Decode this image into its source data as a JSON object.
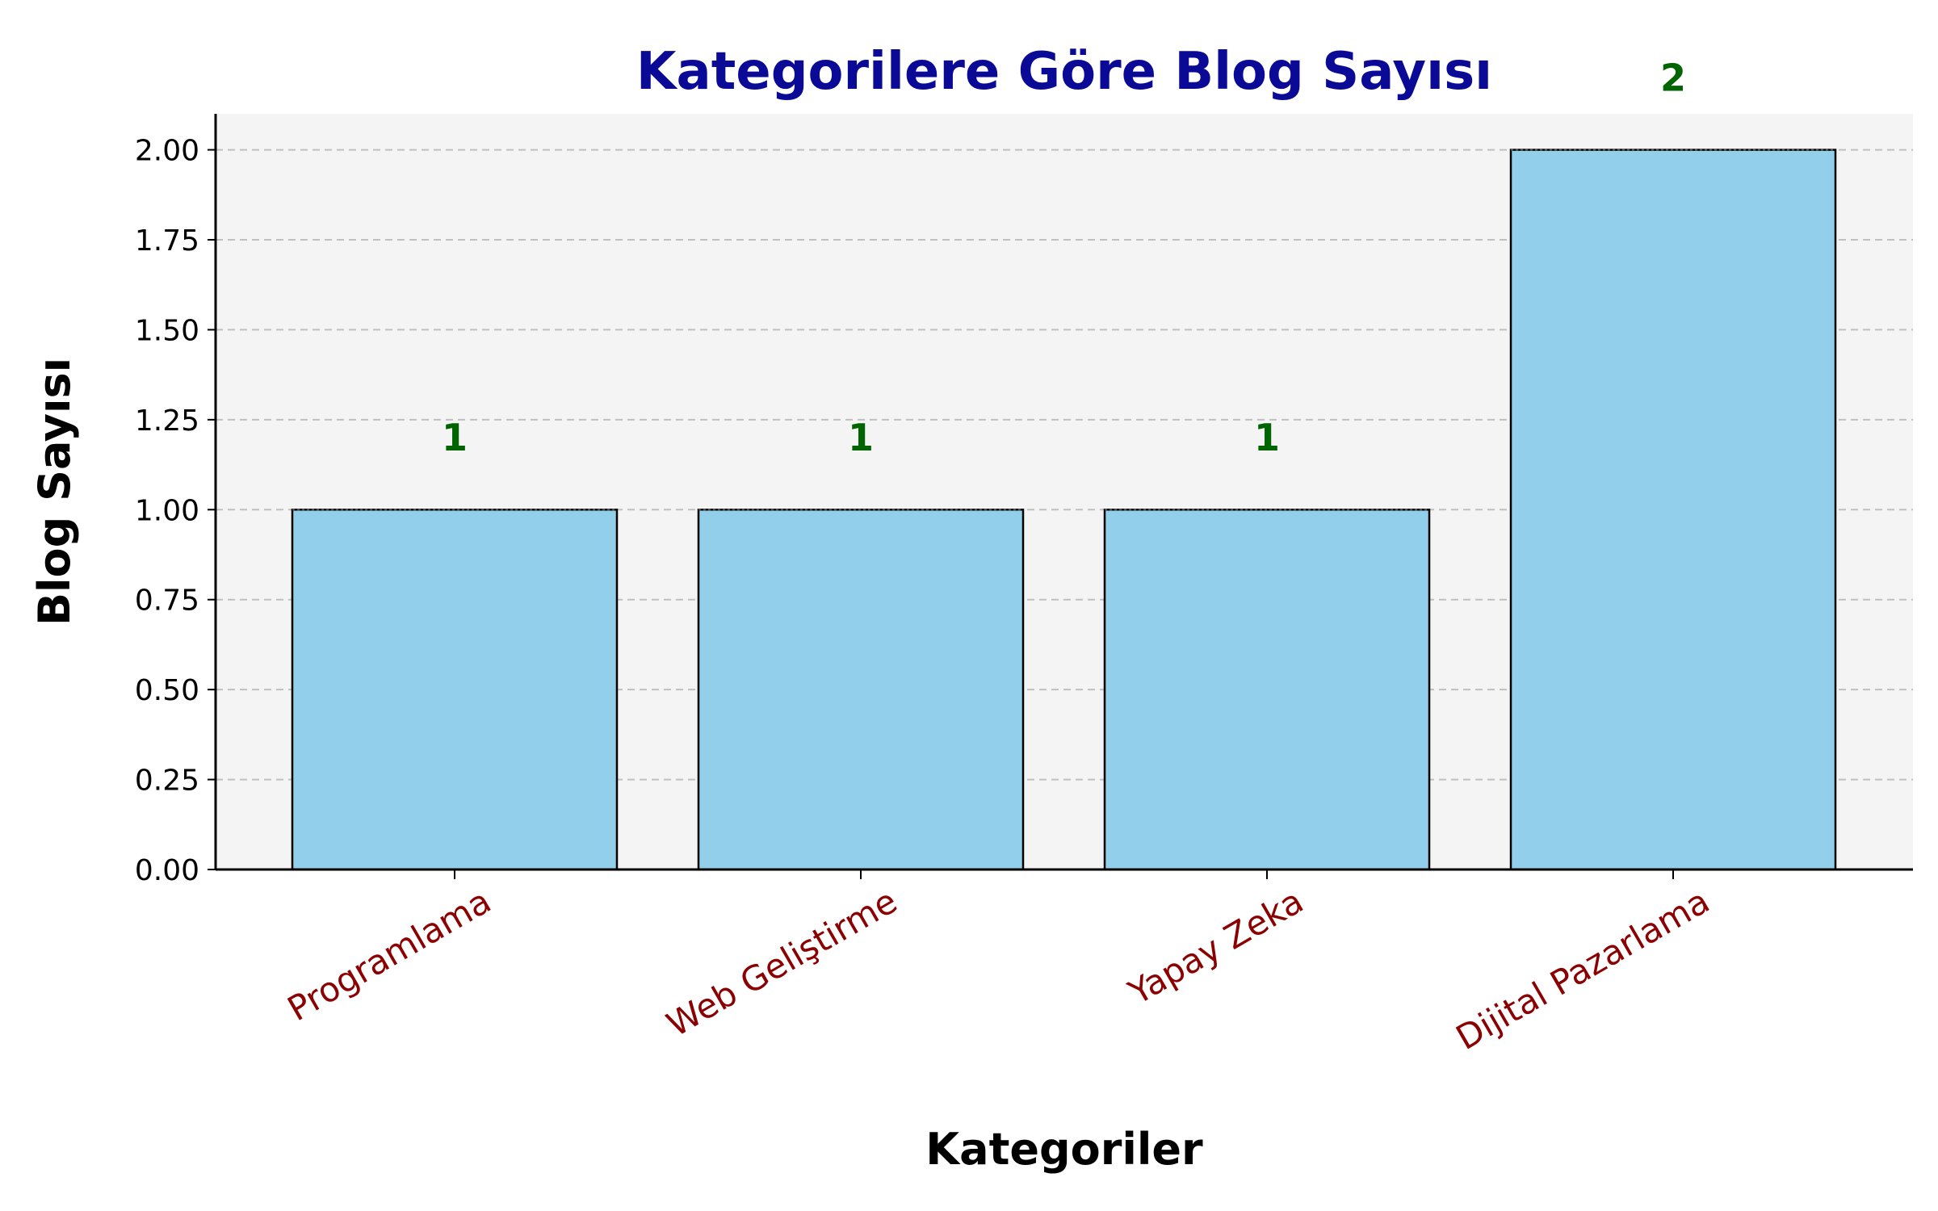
{
  "chart_data": {
    "type": "bar",
    "title": "Kategorilere Göre Blog Sayısı",
    "xlabel": "Kategoriler",
    "ylabel": "Blog Sayısı",
    "categories": [
      "Programlama",
      "Web Geliştirme",
      "Yapay Zeka",
      "Dijital Pazarlama"
    ],
    "values": [
      1,
      1,
      1,
      2
    ],
    "data_labels": [
      "1",
      "1",
      "1",
      "2"
    ],
    "ylim": [
      0,
      2.1
    ],
    "yticks": [
      0,
      0.25,
      0.5,
      0.75,
      1.0,
      1.25,
      1.5,
      1.75,
      2.0
    ],
    "ytick_labels": [
      "0.00",
      "0.25",
      "0.50",
      "0.75",
      "1.00",
      "1.25",
      "1.50",
      "1.75",
      "2.00"
    ],
    "grid": "y-axis dashed",
    "colors": {
      "bar_fill": "#91cfea",
      "bar_edge": "#000000",
      "plot_background": "#f4f4f4",
      "title": "#0a0a96",
      "tick_labels_x": "#8b0000",
      "data_labels": "#006400",
      "grid": "#c0c0c0"
    }
  }
}
